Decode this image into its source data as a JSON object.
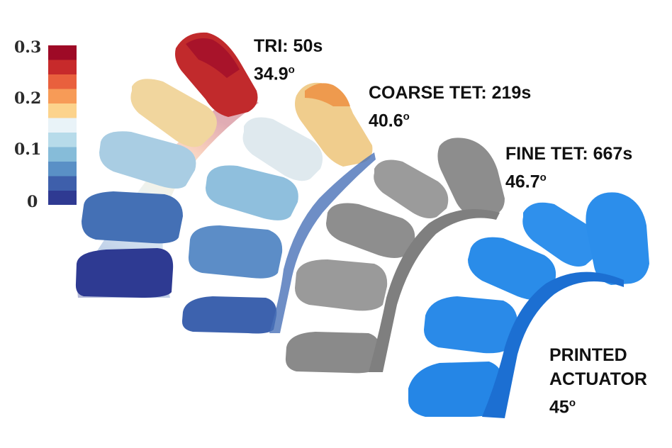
{
  "colorbar": {
    "ticks": [
      "0.3",
      "0.2",
      "0.1",
      "0"
    ],
    "colors": [
      "#9e0a26",
      "#c72a2b",
      "#e9603d",
      "#f79b57",
      "#fcd38c",
      "#e9f3f8",
      "#b7dbea",
      "#86bcd9",
      "#5a90c6",
      "#3e5fab",
      "#2f3a92"
    ]
  },
  "labels": [
    {
      "title": "TRI: 50s",
      "angle": "34.9",
      "unit": "o"
    },
    {
      "title": "COARSE TET: 219s",
      "angle": "40.6",
      "unit": "o"
    },
    {
      "title": "FINE TET: 667s",
      "angle": "46.7",
      "unit": "o"
    },
    {
      "title": "PRINTED",
      "title2": "ACTUATOR",
      "angle": "45",
      "unit": "o"
    }
  ],
  "colors": {
    "tri_top": "#b41f2a",
    "tet_coarse_top": "#f1a355",
    "fine": "#8c8c8c",
    "printed": "#2a8ae6",
    "base": "#2e3b8f"
  }
}
